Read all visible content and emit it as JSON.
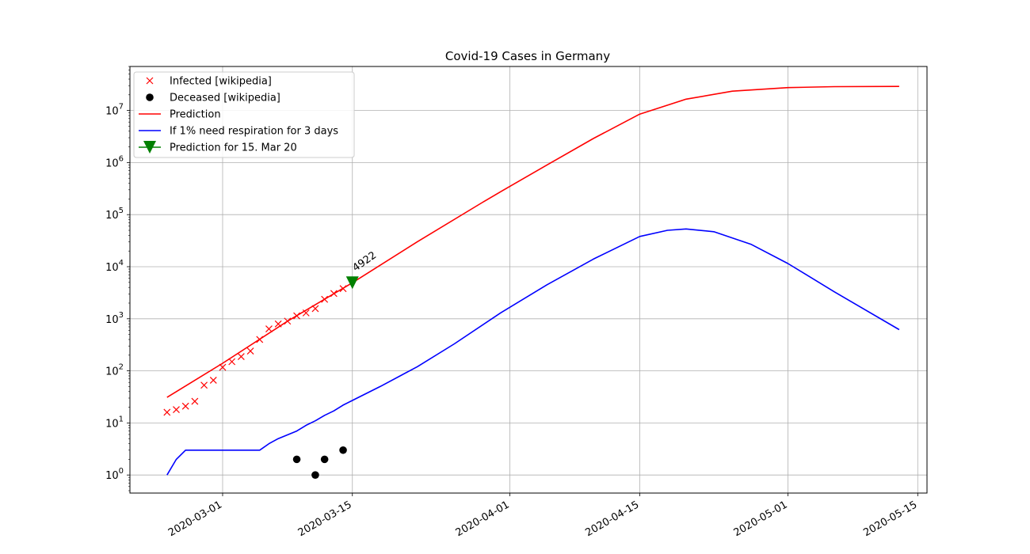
{
  "chart_data": {
    "type": "line",
    "title": "Covid-19 Cases in Germany",
    "xlabel": "",
    "ylabel": "",
    "x_axis": {
      "type": "date",
      "range": [
        "2020-02-20",
        "2020-05-16"
      ],
      "ticks": [
        "2020-03-01",
        "2020-03-15",
        "2020-04-01",
        "2020-04-15",
        "2020-05-01",
        "2020-05-15"
      ]
    },
    "y_axis": {
      "scale": "log",
      "range": [
        0.45,
        70000000
      ],
      "ticks": [
        {
          "value": 1,
          "base": "10",
          "exp": "0"
        },
        {
          "value": 10,
          "base": "10",
          "exp": "1"
        },
        {
          "value": 100,
          "base": "10",
          "exp": "2"
        },
        {
          "value": 1000,
          "base": "10",
          "exp": "3"
        },
        {
          "value": 10000,
          "base": "10",
          "exp": "4"
        },
        {
          "value": 100000,
          "base": "10",
          "exp": "5"
        },
        {
          "value": 1000000,
          "base": "10",
          "exp": "6"
        },
        {
          "value": 10000000,
          "base": "10",
          "exp": "7"
        }
      ]
    },
    "grid": true,
    "legend_position": "top-left",
    "series": [
      {
        "name": "Infected [wikipedia]",
        "kind": "scatter",
        "marker": "x",
        "color": "#ff0000",
        "points": [
          {
            "x": "2020-02-24",
            "y": 16
          },
          {
            "x": "2020-02-25",
            "y": 18
          },
          {
            "x": "2020-02-26",
            "y": 21
          },
          {
            "x": "2020-02-27",
            "y": 26
          },
          {
            "x": "2020-02-28",
            "y": 53
          },
          {
            "x": "2020-02-29",
            "y": 66
          },
          {
            "x": "2020-03-01",
            "y": 117
          },
          {
            "x": "2020-03-02",
            "y": 150
          },
          {
            "x": "2020-03-03",
            "y": 188
          },
          {
            "x": "2020-03-04",
            "y": 240
          },
          {
            "x": "2020-03-05",
            "y": 400
          },
          {
            "x": "2020-03-06",
            "y": 639
          },
          {
            "x": "2020-03-07",
            "y": 795
          },
          {
            "x": "2020-03-08",
            "y": 902
          },
          {
            "x": "2020-03-09",
            "y": 1139
          },
          {
            "x": "2020-03-10",
            "y": 1296
          },
          {
            "x": "2020-03-11",
            "y": 1567
          },
          {
            "x": "2020-03-12",
            "y": 2369
          },
          {
            "x": "2020-03-13",
            "y": 3062
          },
          {
            "x": "2020-03-14",
            "y": 3795
          }
        ]
      },
      {
        "name": "Deceased [wikipedia]",
        "kind": "scatter",
        "marker": "circle",
        "color": "#000000",
        "points": [
          {
            "x": "2020-03-09",
            "y": 2
          },
          {
            "x": "2020-03-11",
            "y": 1
          },
          {
            "x": "2020-03-12",
            "y": 2
          },
          {
            "x": "2020-03-14",
            "y": 3
          }
        ]
      },
      {
        "name": "Prediction",
        "kind": "line",
        "color": "#ff0000",
        "points": [
          {
            "x": "2020-02-24",
            "y": 31
          },
          {
            "x": "2020-03-01",
            "y": 140
          },
          {
            "x": "2020-03-08",
            "y": 900
          },
          {
            "x": "2020-03-15",
            "y": 4922
          },
          {
            "x": "2020-03-22",
            "y": 30000
          },
          {
            "x": "2020-03-29",
            "y": 170000
          },
          {
            "x": "2020-04-01",
            "y": 350000
          },
          {
            "x": "2020-04-05",
            "y": 900000
          },
          {
            "x": "2020-04-10",
            "y": 2900000
          },
          {
            "x": "2020-04-15",
            "y": 8500000
          },
          {
            "x": "2020-04-20",
            "y": 16500000
          },
          {
            "x": "2020-04-25",
            "y": 23500000
          },
          {
            "x": "2020-05-01",
            "y": 27500000
          },
          {
            "x": "2020-05-06",
            "y": 28700000
          },
          {
            "x": "2020-05-13",
            "y": 29000000
          }
        ]
      },
      {
        "name": "If 1% need respiration for 3 days",
        "kind": "line",
        "color": "#0000ff",
        "points": [
          {
            "x": "2020-02-24",
            "y": 1
          },
          {
            "x": "2020-02-25",
            "y": 2
          },
          {
            "x": "2020-02-26",
            "y": 3
          },
          {
            "x": "2020-03-05",
            "y": 3
          },
          {
            "x": "2020-03-06",
            "y": 4
          },
          {
            "x": "2020-03-07",
            "y": 5
          },
          {
            "x": "2020-03-09",
            "y": 7
          },
          {
            "x": "2020-03-10",
            "y": 9
          },
          {
            "x": "2020-03-11",
            "y": 11
          },
          {
            "x": "2020-03-12",
            "y": 14
          },
          {
            "x": "2020-03-13",
            "y": 17
          },
          {
            "x": "2020-03-14",
            "y": 22
          },
          {
            "x": "2020-03-15",
            "y": 27
          },
          {
            "x": "2020-03-18",
            "y": 50
          },
          {
            "x": "2020-03-22",
            "y": 120
          },
          {
            "x": "2020-03-26",
            "y": 330
          },
          {
            "x": "2020-03-31",
            "y": 1300
          },
          {
            "x": "2020-04-05",
            "y": 4500
          },
          {
            "x": "2020-04-10",
            "y": 14000
          },
          {
            "x": "2020-04-15",
            "y": 38000
          },
          {
            "x": "2020-04-18",
            "y": 50000
          },
          {
            "x": "2020-04-20",
            "y": 53000
          },
          {
            "x": "2020-04-23",
            "y": 47000
          },
          {
            "x": "2020-04-27",
            "y": 27000
          },
          {
            "x": "2020-05-01",
            "y": 11500
          },
          {
            "x": "2020-05-06",
            "y": 3300
          },
          {
            "x": "2020-05-13",
            "y": 620
          }
        ]
      },
      {
        "name": "Prediction for 15. Mar 20",
        "kind": "marker",
        "marker": "triangle-down",
        "color": "#008000",
        "points": [
          {
            "x": "2020-03-15",
            "y": 4922
          }
        ]
      }
    ],
    "annotations": [
      {
        "text": "4922",
        "x": "2020-03-15",
        "y": 4922
      }
    ]
  }
}
